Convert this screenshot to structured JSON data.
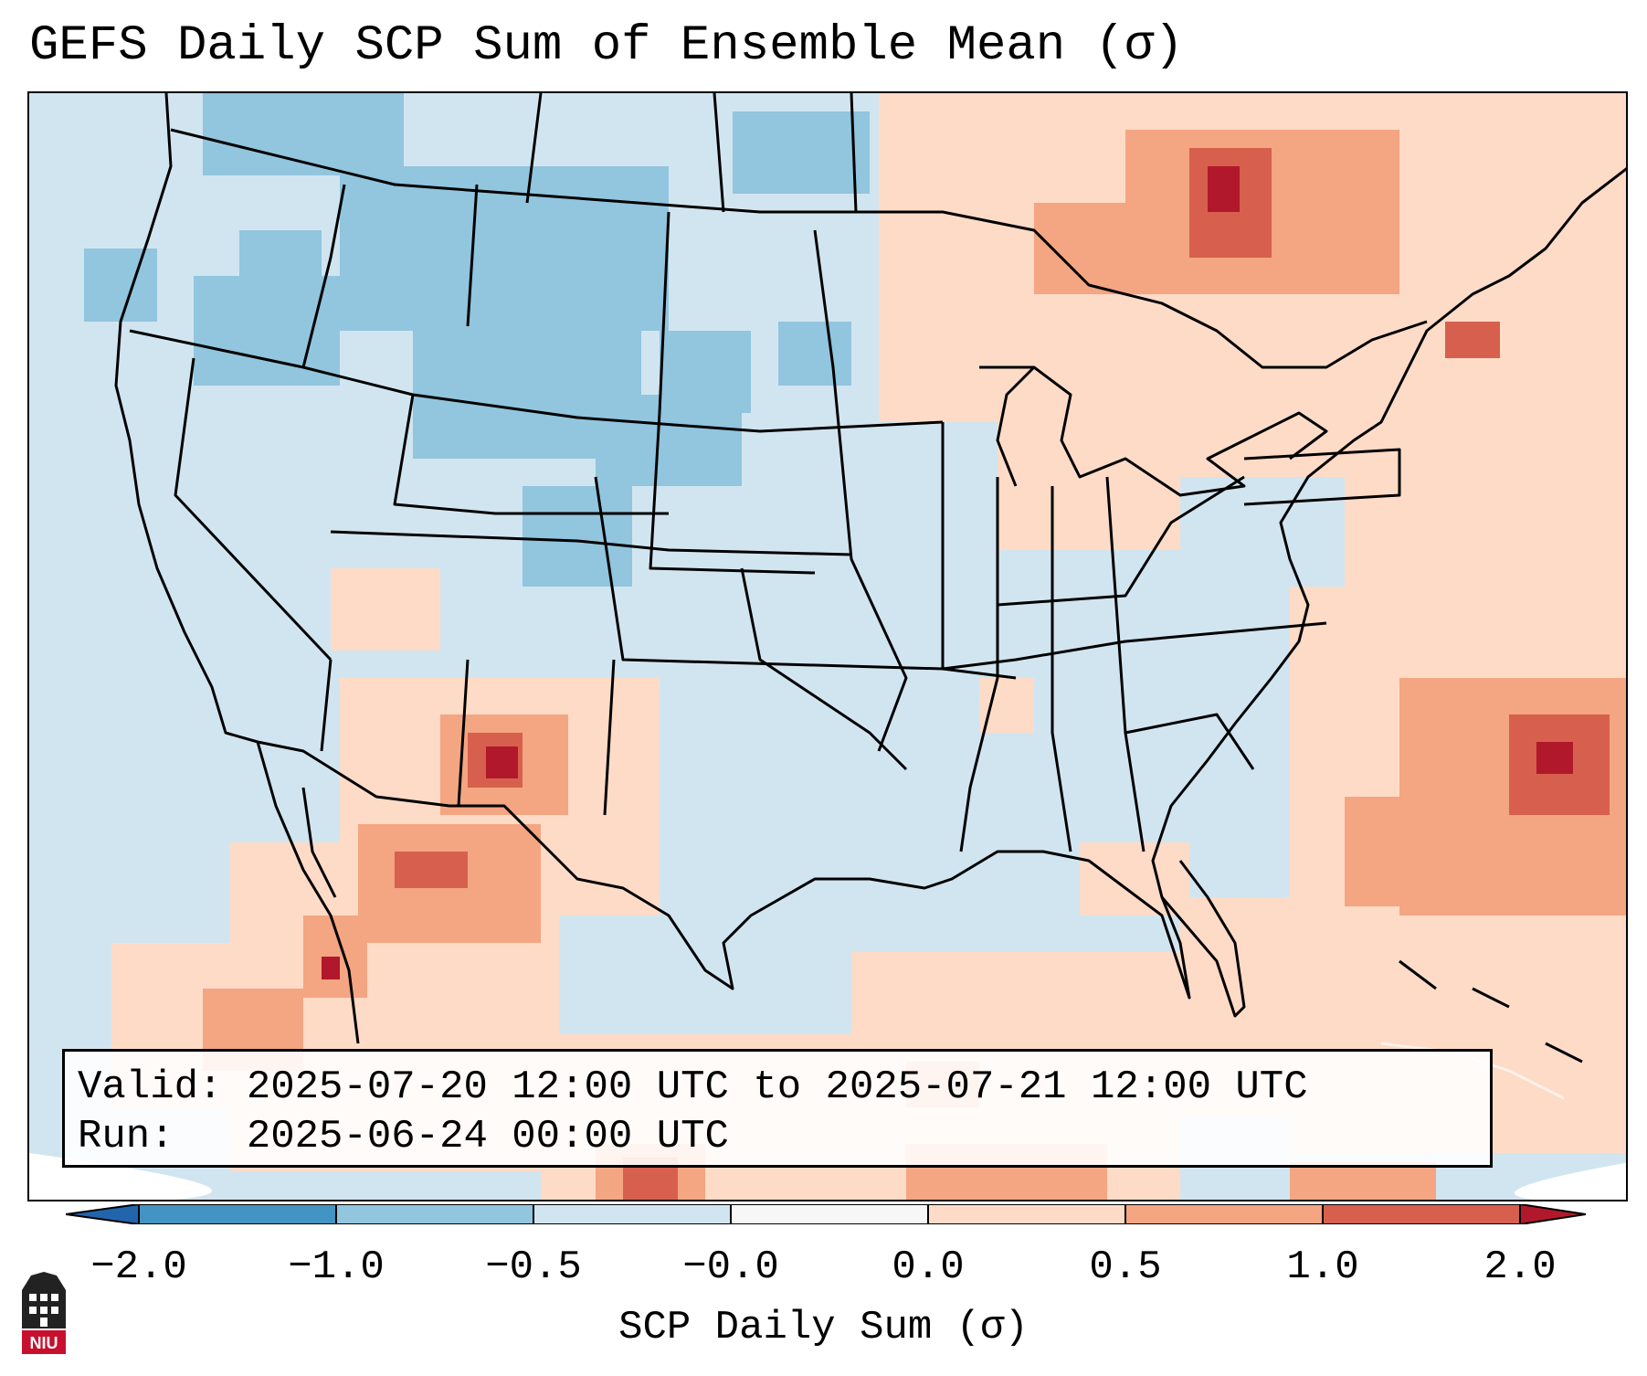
{
  "title": "GEFS Daily SCP Sum of Ensemble Mean (σ)",
  "info": {
    "valid": "Valid: 2025-07-20 12:00 UTC to 2025-07-21 12:00 UTC",
    "run": "Run:   2025-06-24 00:00 UTC"
  },
  "colorbar": {
    "label": "SCP Daily Sum (σ)",
    "ticks": [
      "−2.0",
      "−1.0",
      "−0.5",
      "−0.0",
      "0.0",
      "0.5",
      "1.0",
      "2.0"
    ],
    "colors": [
      "#2166ac",
      "#4393c3",
      "#92c5de",
      "#d1e5f0",
      "#f7f7f7",
      "#fddbc7",
      "#f4a582",
      "#d6604d",
      "#b2182b"
    ]
  },
  "map": {
    "background_color": "#d1e5f0",
    "ocean_outside_projection": "#ffffff"
  },
  "logo": {
    "text": "NIU"
  }
}
